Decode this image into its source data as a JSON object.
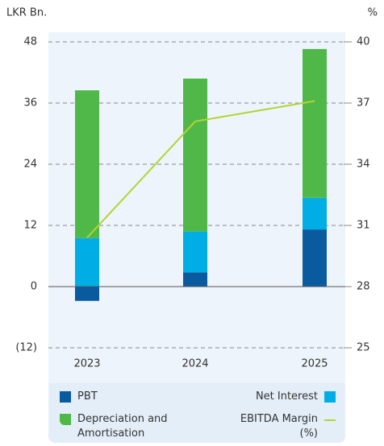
{
  "chart_data": {
    "type": "bar",
    "stacked": true,
    "y_label": "LKR Bn.",
    "y2_label": "%",
    "categories": [
      "2023",
      "2024",
      "2025"
    ],
    "series": [
      {
        "name": "PBT",
        "color": "#0a5aa0",
        "values": [
          -2.8,
          2.8,
          11.2
        ]
      },
      {
        "name": "Net Interest",
        "color": "#00aee6",
        "values": [
          9.5,
          8.0,
          6.2
        ]
      },
      {
        "name": "Depreciation and Amortisation",
        "color": "#4fb848",
        "values": [
          29.0,
          30.0,
          29.2
        ]
      },
      {
        "name": "EBITDA Margin (%)",
        "color": "#b5d334",
        "type": "line",
        "axis": "y2",
        "values": [
          30.4,
          36.1,
          37.1
        ]
      }
    ],
    "ylim": [
      -12,
      48
    ],
    "yticks": [
      {
        "value": -12,
        "label": "(12)"
      },
      0,
      12,
      24,
      36,
      48
    ],
    "y2lim": [
      25,
      40
    ],
    "y2ticks": [
      25,
      28,
      31,
      34,
      37,
      40
    ],
    "grid": true
  }
}
